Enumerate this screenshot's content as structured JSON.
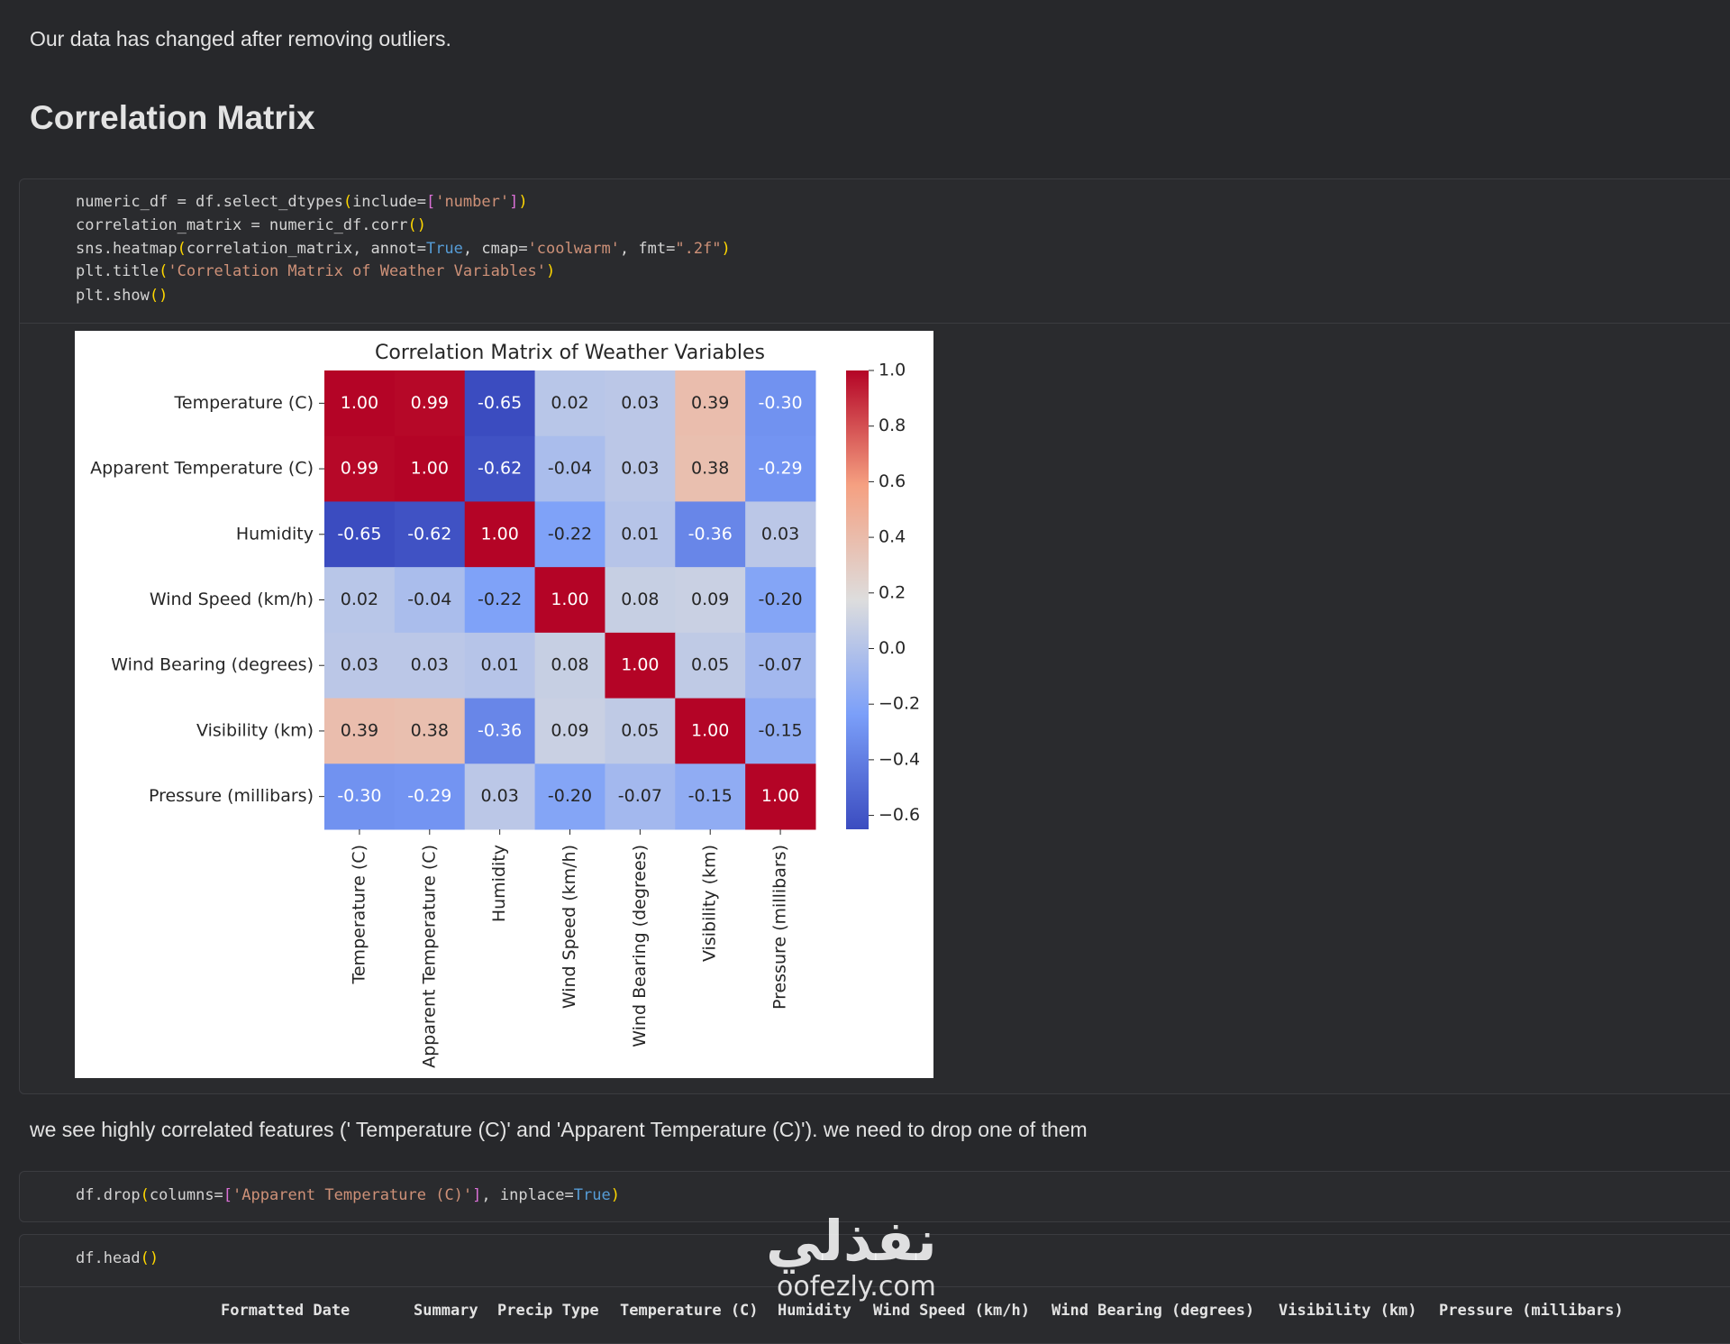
{
  "notes": [
    "Our data has changed after removing outliers.",
    "we see highly correlated features (' Temperature (C)' and 'Apparent Temperature (C)'). we need to drop one of them"
  ],
  "heading": "Correlation Matrix",
  "cells": [
    {
      "code": [
        "numeric_df = df.select_dtypes(include=['number'])",
        "correlation_matrix = numeric_df.corr()",
        "sns.heatmap(correlation_matrix, annot=True, cmap='coolwarm', fmt=\".2f\")",
        "plt.title('Correlation Matrix of Weather Variables')",
        "plt.show()"
      ]
    },
    {
      "code": [
        "df.drop(columns=['Apparent Temperature (C)'], inplace=True)"
      ]
    },
    {
      "code": [
        "df.head()"
      ],
      "output_columns": [
        "Formatted Date",
        "Summary",
        "Precip Type",
        "Temperature (C)",
        "Humidity",
        "Wind Speed (km/h)",
        "Wind Bearing (degrees)",
        "Visibility (km)",
        "Pressure (millibars)"
      ]
    }
  ],
  "watermark": [
    "نفذلي",
    "oofezly.com"
  ],
  "chart_data": {
    "type": "heatmap",
    "title": "Correlation Matrix of Weather Variables",
    "categories": [
      "Temperature (C)",
      "Apparent Temperature (C)",
      "Humidity",
      "Wind Speed (km/h)",
      "Wind Bearing (degrees)",
      "Visibility (km)",
      "Pressure (millibars)"
    ],
    "values": [
      [
        1.0,
        0.99,
        -0.65,
        0.02,
        0.03,
        0.39,
        -0.3
      ],
      [
        0.99,
        1.0,
        -0.62,
        -0.04,
        0.03,
        0.38,
        -0.29
      ],
      [
        -0.65,
        -0.62,
        1.0,
        -0.22,
        0.01,
        -0.36,
        0.03
      ],
      [
        0.02,
        -0.04,
        -0.22,
        1.0,
        0.08,
        0.09,
        -0.2
      ],
      [
        0.03,
        0.03,
        0.01,
        0.08,
        1.0,
        0.05,
        -0.07
      ],
      [
        0.39,
        0.38,
        -0.36,
        0.09,
        0.05,
        1.0,
        -0.15
      ],
      [
        -0.3,
        -0.29,
        0.03,
        -0.2,
        -0.07,
        -0.15,
        1.0
      ]
    ],
    "value_labels": [
      [
        "1.00",
        "0.99",
        "-0.65",
        "0.02",
        "0.03",
        "0.39",
        "-0.30"
      ],
      [
        "0.99",
        "1.00",
        "-0.62",
        "-0.04",
        "0.03",
        "0.38",
        "-0.29"
      ],
      [
        "-0.65",
        "-0.62",
        "1.00",
        "-0.22",
        "0.01",
        "-0.36",
        "0.03"
      ],
      [
        "0.02",
        "-0.04",
        "-0.22",
        "1.00",
        "0.08",
        "0.09",
        "-0.20"
      ],
      [
        "0.03",
        "0.03",
        "0.01",
        "0.08",
        "1.00",
        "0.05",
        "-0.07"
      ],
      [
        "0.39",
        "0.38",
        "-0.36",
        "0.09",
        "0.05",
        "1.00",
        "-0.15"
      ],
      [
        "-0.30",
        "-0.29",
        "0.03",
        "-0.20",
        "-0.07",
        "-0.15",
        "1.00"
      ]
    ],
    "cmap": "coolwarm",
    "clim": [
      -0.65,
      1.0
    ],
    "cticks": [
      {
        "value": 1.0,
        "label": "1.0"
      },
      0.8,
      0.6,
      0.4,
      0.2,
      {
        "value": 0.0,
        "label": "0.0"
      },
      {
        "value": -0.2,
        "label": "−0.2"
      },
      {
        "value": -0.4,
        "label": "−0.4"
      },
      {
        "value": -0.6,
        "label": "−0.6"
      }
    ]
  }
}
